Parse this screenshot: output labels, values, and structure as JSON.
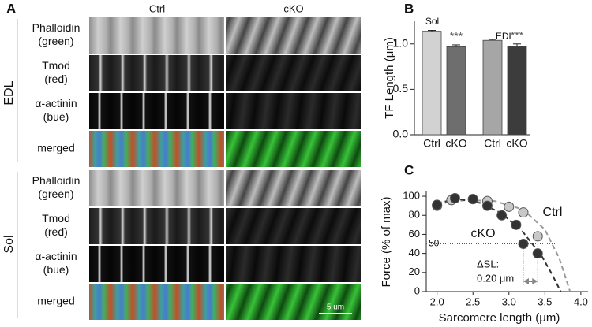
{
  "panel_a": {
    "label": "A",
    "columns": [
      "Ctrl",
      "cKO"
    ],
    "groups": [
      {
        "name": "EDL",
        "rows": [
          [
            "Phalloidin",
            "(green)"
          ],
          [
            "Tmod",
            "(red)"
          ],
          [
            "α-actinin",
            "(bue)"
          ],
          [
            "merged"
          ]
        ]
      },
      {
        "name": "Sol",
        "rows": [
          [
            "Phalloidin",
            "(green)"
          ],
          [
            "Tmod",
            "(red)"
          ],
          [
            "α-actinin",
            "(bue)"
          ],
          [
            "merged"
          ]
        ]
      }
    ],
    "scale_bar": "5 um"
  },
  "chart_data": [
    {
      "type": "bar",
      "panel": "B",
      "ylabel": "TF Length (μm)",
      "categories": [
        "Ctrl",
        "cKO",
        "Ctrl",
        "cKO"
      ],
      "groups": [
        "Sol",
        "EDL"
      ],
      "values": [
        1.14,
        0.97,
        1.04,
        0.97
      ],
      "errors": [
        0.01,
        0.02,
        0.01,
        0.03
      ],
      "colors": [
        "#d2d2d2",
        "#6e6e6e",
        "#a6a6a6",
        "#3c3c3c"
      ],
      "significance": [
        null,
        "***",
        null,
        "***"
      ],
      "ylim": [
        0,
        1.25
      ],
      "yticks": [
        {
          "value": 0,
          "label": "0.0"
        },
        {
          "value": 0.5,
          "label": "0.5"
        },
        {
          "value": 1,
          "label": "1.0"
        }
      ]
    },
    {
      "type": "scatter",
      "panel": "C",
      "xlabel": "Sarcomere length (μm)",
      "ylabel": "Force (% of max)",
      "series": [
        {
          "name": "Ctrl",
          "color": "#c8c8c8",
          "x": [
            2.0,
            2.2,
            2.5,
            2.7,
            3.0,
            3.2,
            3.4
          ],
          "values": [
            90,
            96,
            97,
            95,
            89,
            83,
            58
          ],
          "fit_x": [
            2.0,
            2.4,
            2.8,
            3.2,
            3.5,
            3.7,
            3.85
          ],
          "fit_values": [
            92,
            96,
            95,
            86,
            65,
            35,
            0
          ]
        },
        {
          "name": "cKO",
          "color": "#333333",
          "x": [
            2.0,
            2.25,
            2.5,
            2.7,
            2.9,
            3.1,
            3.2,
            3.4
          ],
          "values": [
            91,
            98,
            97,
            90,
            80,
            70,
            50,
            40
          ],
          "fit_x": [
            2.0,
            2.3,
            2.6,
            2.9,
            3.2,
            3.45,
            3.6,
            3.72
          ],
          "fit_values": [
            93,
            97,
            93,
            82,
            62,
            38,
            18,
            0
          ]
        }
      ],
      "reference": {
        "y": 50,
        "x": [
          3.2,
          3.4
        ]
      },
      "annotation": [
        "ΔSL:",
        "0.20 μm"
      ],
      "xlim": [
        1.85,
        4.1
      ],
      "xticks": [
        {
          "value": 2,
          "label": "2.0"
        },
        {
          "value": 2.5,
          "label": "2.5"
        },
        {
          "value": 3,
          "label": "3.0"
        },
        {
          "value": 3.5,
          "label": "3.5"
        },
        {
          "value": 4,
          "label": "4.0"
        }
      ],
      "ylim": [
        0,
        105
      ],
      "yticks": [
        0,
        20,
        40,
        60,
        80,
        100
      ]
    }
  ]
}
